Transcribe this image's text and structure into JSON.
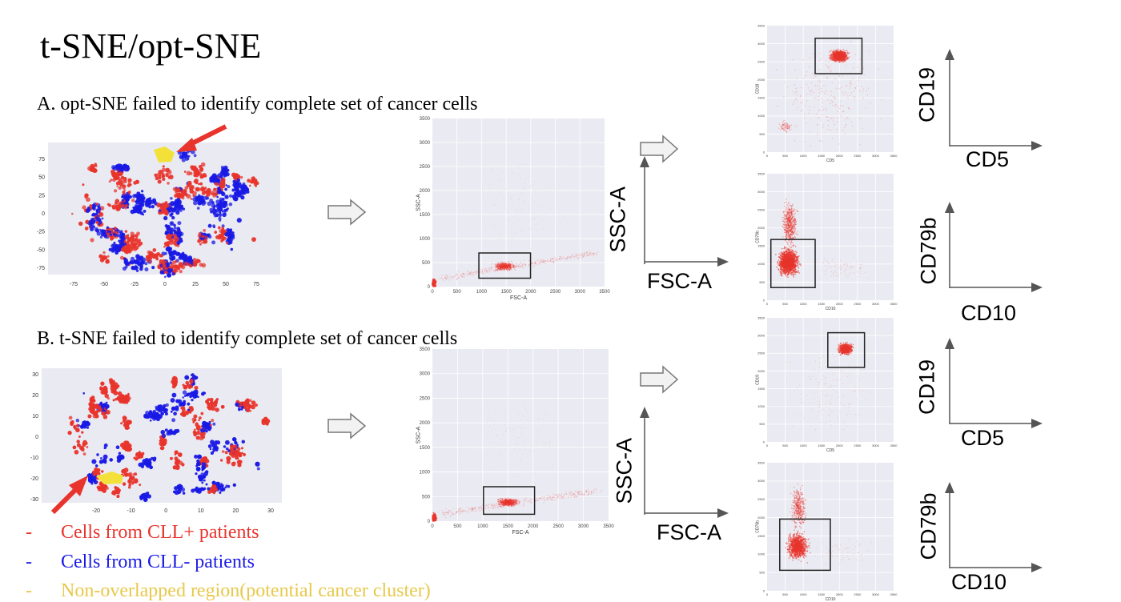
{
  "title": "t-SNE/opt-SNE",
  "section_a": "A. opt-SNE failed to identify complete set of cancer cells",
  "section_b": "B. t-SNE failed to identify complete set of cancer cells",
  "legend": [
    {
      "marker": "-",
      "text": "Cells from CLL+ patients",
      "color": "#e8342c"
    },
    {
      "marker": "-",
      "text": "Cells from CLL- patients",
      "color": "#1a1ae6"
    },
    {
      "marker": "-",
      "text": "Non-overlapped region(potential cancer cluster)",
      "color": "#e8c84a"
    }
  ],
  "tsne_a": {
    "xticks": [
      "-75",
      "-50",
      "-25",
      "0",
      "25",
      "50",
      "75"
    ],
    "yticks": [
      "75",
      "50",
      "25",
      "0",
      "-25",
      "-50",
      "-75"
    ]
  },
  "tsne_b": {
    "xticks": [
      "-20",
      "-10",
      "0",
      "10",
      "20",
      "30"
    ],
    "yticks": [
      "30",
      "20",
      "10",
      "0",
      "-10",
      "-20",
      "-30"
    ]
  },
  "fsc_plot": {
    "xlabel": "FSC-A",
    "ylabel": "SSC-A",
    "xticks": [
      "0",
      "500",
      "1000",
      "1500",
      "2000",
      "2500",
      "3000",
      "3500"
    ],
    "yticks": [
      "3500",
      "3000",
      "2500",
      "2000",
      "1500",
      "1000",
      "500",
      "0"
    ]
  },
  "cd19_plot": {
    "xlabel": "CD5",
    "ylabel": "CD19",
    "xticks": [
      "0",
      "500",
      "1000",
      "1500",
      "2000",
      "2500",
      "3000",
      "3500"
    ],
    "yticks": [
      "3500",
      "3000",
      "2500",
      "2000",
      "1500",
      "1000",
      "500",
      "0"
    ]
  },
  "cd79_plot": {
    "xlabel": "CD10",
    "ylabel": "CD79b",
    "xticks": [
      "0",
      "500",
      "1000",
      "1500",
      "2000",
      "2500",
      "3000",
      "3500"
    ],
    "yticks": [
      "3500",
      "3000",
      "2500",
      "2000",
      "1500",
      "1000",
      "500",
      "0"
    ]
  },
  "axis_diagrams": {
    "fsc": {
      "x": "FSC-A",
      "y": "SSC-A"
    },
    "cd19": {
      "x": "CD5",
      "y": "CD19"
    },
    "cd79": {
      "x": "CD10",
      "y": "CD79b"
    }
  },
  "colors": {
    "red": "#e8342c",
    "blue": "#1a1ae6",
    "yellow": "#f3e13a",
    "plot_bg": "#eaeaf2",
    "arrow_red": "#e8342c"
  }
}
